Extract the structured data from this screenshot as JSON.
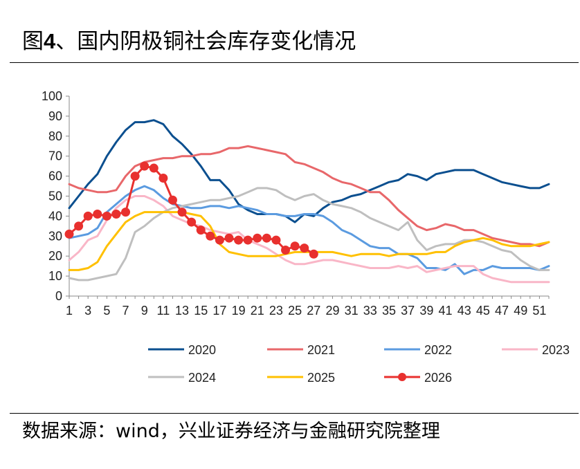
{
  "figure": {
    "title_prefix": "图",
    "title_number": "4",
    "title_text": "、国内阴极铜社会库存变化情况",
    "source": "数据来源：wind，兴业证券经济与金融研究院整理"
  },
  "colors": {
    "2020": "#0b4f8f",
    "2021": "#e8676a",
    "2022": "#5b9be0",
    "2023": "#f9b6c7",
    "2024": "#bfbfbf",
    "2025": "#ffc000",
    "2026": "#e8302e"
  },
  "chart_data": {
    "type": "line",
    "x_ticks": [
      1,
      3,
      5,
      7,
      9,
      11,
      13,
      15,
      17,
      19,
      21,
      23,
      25,
      27,
      29,
      31,
      33,
      35,
      37,
      39,
      41,
      43,
      45,
      47,
      49,
      51
    ],
    "xlim": [
      1,
      52
    ],
    "ylim": [
      0,
      100
    ],
    "y_ticks": [
      0,
      10,
      20,
      30,
      40,
      50,
      60,
      70,
      80,
      90,
      100
    ],
    "grid": false,
    "legend_position": "bottom",
    "series": [
      {
        "name": "2020",
        "values": [
          44,
          50,
          56,
          61,
          70,
          77,
          83,
          87,
          87,
          88,
          86,
          80,
          76,
          71,
          65,
          58,
          58,
          53,
          46,
          43,
          41,
          41,
          41,
          40,
          37,
          41,
          40,
          44,
          47,
          48,
          50,
          51,
          53,
          55,
          57,
          58,
          61,
          60,
          58,
          61,
          62,
          63,
          63,
          63,
          61,
          59,
          57,
          56,
          55,
          54,
          54,
          56
        ],
        "marker": false
      },
      {
        "name": "2021",
        "values": [
          56,
          54,
          53,
          52,
          52,
          53,
          60,
          65,
          67,
          68,
          69,
          69,
          70,
          70,
          71,
          71,
          72,
          74,
          74,
          75,
          74,
          73,
          72,
          71,
          67,
          66,
          64,
          62,
          59,
          57,
          56,
          54,
          52,
          52,
          48,
          43,
          39,
          35,
          33,
          34,
          36,
          35,
          33,
          33,
          31,
          29,
          28,
          27,
          26,
          26,
          25,
          27
        ],
        "marker": false
      },
      {
        "name": "2022",
        "values": [
          29,
          30,
          31,
          34,
          42,
          46,
          50,
          53,
          55,
          53,
          49,
          46,
          45,
          44,
          44,
          45,
          45,
          44,
          45,
          44,
          43,
          41,
          41,
          40,
          40,
          41,
          41,
          40,
          37,
          33,
          31,
          28,
          25,
          24,
          24,
          21,
          21,
          19,
          14,
          14,
          13,
          16,
          11,
          13,
          13,
          15,
          14,
          14,
          14,
          14,
          13,
          15
        ],
        "marker": false
      },
      {
        "name": "2023",
        "values": [
          18,
          22,
          28,
          30,
          38,
          44,
          48,
          50,
          50,
          48,
          45,
          40,
          38,
          36,
          35,
          33,
          32,
          31,
          32,
          28,
          26,
          24,
          21,
          18,
          16,
          16,
          17,
          18,
          18,
          17,
          16,
          15,
          14,
          14,
          14,
          15,
          14,
          15,
          12,
          13,
          14,
          15,
          15,
          15,
          11,
          9,
          8,
          7,
          7,
          7,
          7,
          7
        ],
        "marker": false
      },
      {
        "name": "2024",
        "values": [
          9,
          8,
          8,
          9,
          10,
          11,
          19,
          32,
          35,
          39,
          42,
          44,
          45,
          46,
          47,
          48,
          48,
          49,
          50,
          52,
          54,
          54,
          53,
          50,
          48,
          50,
          51,
          48,
          46,
          45,
          44,
          42,
          39,
          37,
          35,
          33,
          37,
          28,
          23,
          25,
          26,
          26,
          28,
          28,
          27,
          25,
          23,
          22,
          18,
          15,
          13,
          13
        ],
        "marker": false
      },
      {
        "name": "2025",
        "values": [
          13,
          13,
          14,
          17,
          25,
          31,
          37,
          40,
          42,
          42,
          42,
          42,
          42,
          41,
          40,
          35,
          26,
          22,
          21,
          20,
          20,
          20,
          20,
          21,
          22,
          22,
          22,
          22,
          22,
          21,
          20,
          21,
          21,
          21,
          20,
          21,
          21,
          21,
          21,
          22,
          22,
          25,
          27,
          28,
          29,
          28,
          26,
          25,
          25,
          25,
          26,
          27
        ],
        "marker": false
      },
      {
        "name": "2026",
        "values": [
          31,
          35,
          40,
          41,
          40,
          41,
          42,
          60,
          65,
          64,
          59,
          48,
          42,
          37,
          33,
          30,
          28,
          29,
          28,
          28,
          29,
          29,
          28,
          23,
          25,
          24,
          21
        ],
        "marker": true
      }
    ]
  }
}
